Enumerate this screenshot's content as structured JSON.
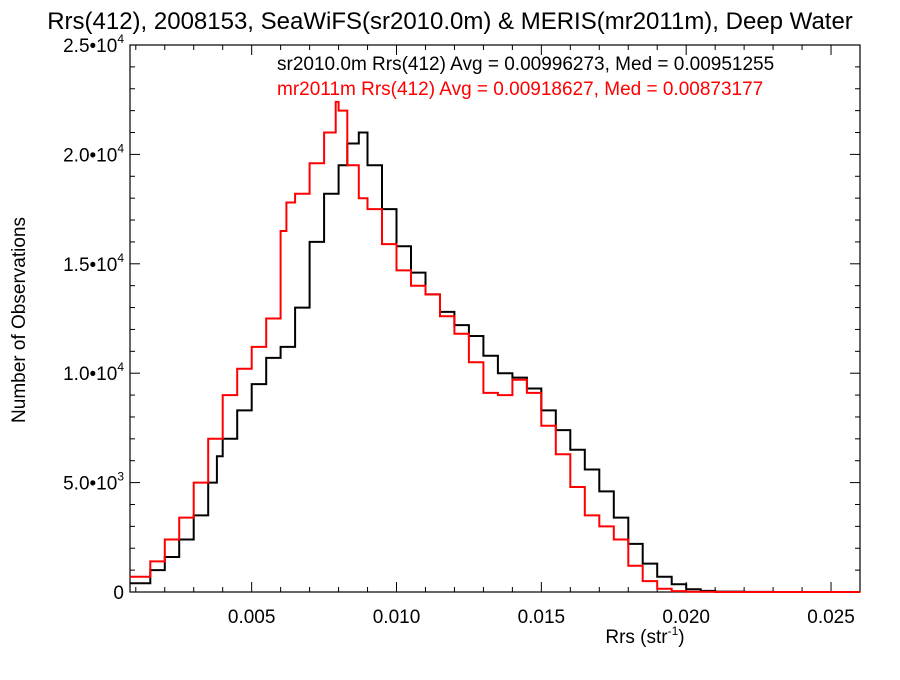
{
  "chart_data": {
    "type": "line",
    "title": "Rrs(412), 2008153, SeaWiFS(sr2010.0m) & MERIS(mr2011m), Deep Water",
    "xlabel": "Rrs (str",
    "xlabel_sup": "-1",
    "xlabel_close": ")",
    "ylabel": "Number of Observations",
    "xlim": [
      0.0008,
      0.026
    ],
    "ylim": [
      0,
      25000
    ],
    "xticks": [
      0.005,
      0.01,
      0.015,
      0.02,
      0.025
    ],
    "xtick_labels": [
      "0.005",
      "0.010",
      "0.015",
      "0.020",
      "0.025"
    ],
    "yticks": [
      0,
      5000,
      10000,
      15000,
      20000,
      25000
    ],
    "ytick_labels": [
      {
        "base": "0",
        "exp": ""
      },
      {
        "base": "5.0•10",
        "exp": "3"
      },
      {
        "base": "1.0•10",
        "exp": "4"
      },
      {
        "base": "1.5•10",
        "exp": "4"
      },
      {
        "base": "2.0•10",
        "exp": "4"
      },
      {
        "base": "2.5•10",
        "exp": "4"
      }
    ],
    "grid": false,
    "step": true,
    "legend_position": "top-right",
    "series": [
      {
        "name": "sr2010.0m",
        "legend_text": "sr2010.0m Rrs(412) Avg = 0.00996273, Med = 0.00951255",
        "color": "#000000",
        "x": [
          0.0008,
          0.0015,
          0.002,
          0.0025,
          0.003,
          0.0035,
          0.0038,
          0.004,
          0.0045,
          0.005,
          0.0055,
          0.006,
          0.0065,
          0.007,
          0.0075,
          0.008,
          0.0083,
          0.0087,
          0.009,
          0.0095,
          0.01,
          0.0105,
          0.011,
          0.0115,
          0.012,
          0.0125,
          0.013,
          0.0135,
          0.014,
          0.0145,
          0.015,
          0.0155,
          0.016,
          0.0165,
          0.017,
          0.0175,
          0.018,
          0.0185,
          0.019,
          0.0195,
          0.02,
          0.0205,
          0.021,
          0.022,
          0.023,
          0.024,
          0.025,
          0.026
        ],
        "y": [
          400,
          1000,
          1600,
          2400,
          3500,
          5000,
          6200,
          7000,
          8300,
          9500,
          10700,
          11200,
          13000,
          16000,
          18200,
          19500,
          20500,
          21000,
          19500,
          17500,
          15800,
          14600,
          13600,
          12800,
          12200,
          11700,
          10800,
          10000,
          9800,
          9300,
          8300,
          7400,
          6500,
          5600,
          4600,
          3400,
          2200,
          1300,
          700,
          350,
          130,
          50,
          20,
          5,
          0,
          0,
          0,
          0
        ]
      },
      {
        "name": "mr2011m",
        "legend_text": "mr2011m Rrs(412) Avg = 0.00918627, Med = 0.00873177",
        "color": "#ff0000",
        "x": [
          0.0008,
          0.0015,
          0.002,
          0.0025,
          0.003,
          0.0035,
          0.004,
          0.0045,
          0.005,
          0.0055,
          0.006,
          0.0062,
          0.0065,
          0.007,
          0.0075,
          0.0079,
          0.008,
          0.0083,
          0.0087,
          0.009,
          0.0095,
          0.01,
          0.0105,
          0.011,
          0.0115,
          0.012,
          0.0125,
          0.013,
          0.0135,
          0.014,
          0.0145,
          0.015,
          0.0155,
          0.016,
          0.0165,
          0.017,
          0.0175,
          0.018,
          0.0185,
          0.019,
          0.0195,
          0.02,
          0.021,
          0.022,
          0.023,
          0.024,
          0.025,
          0.026
        ],
        "y": [
          700,
          1400,
          2400,
          3400,
          5000,
          7000,
          9000,
          10200,
          11200,
          12500,
          16500,
          17800,
          18200,
          19600,
          21000,
          22400,
          22000,
          19500,
          18000,
          17500,
          15900,
          14700,
          14000,
          13600,
          12600,
          11800,
          10500,
          9100,
          9000,
          9700,
          9100,
          7600,
          6300,
          4800,
          3500,
          3000,
          2400,
          1200,
          500,
          150,
          40,
          10,
          0,
          0,
          0,
          0,
          0,
          0
        ]
      }
    ]
  }
}
